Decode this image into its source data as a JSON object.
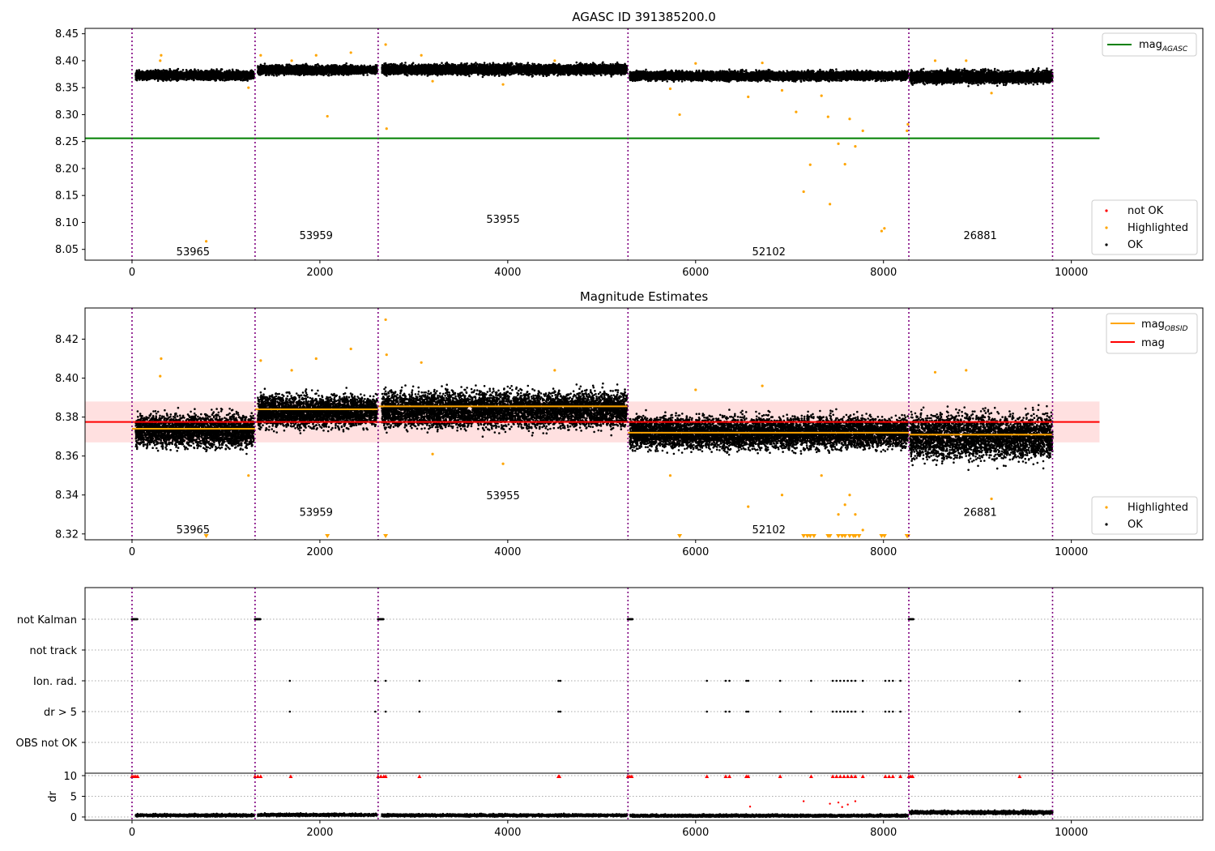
{
  "chart_data": [
    {
      "type": "scatter",
      "title": "AGASC ID 391385200.0",
      "xlim": [
        -500,
        11400
      ],
      "ylim": [
        8.03,
        8.46
      ],
      "x_ticks": [
        0,
        2000,
        4000,
        6000,
        8000,
        10000
      ],
      "y_ticks": [
        8.05,
        8.1,
        8.15,
        8.2,
        8.25,
        8.3,
        8.35,
        8.4,
        8.45
      ],
      "obsid_boundaries": [
        0,
        1310,
        2620,
        5280,
        8270,
        9800
      ],
      "obsid_labels": [
        {
          "label": "53965",
          "x": 650,
          "y": 8.045
        },
        {
          "label": "53959",
          "x": 1960,
          "y": 8.075
        },
        {
          "label": "53955",
          "x": 3950,
          "y": 8.105
        },
        {
          "label": "52102",
          "x": 6780,
          "y": 8.045
        },
        {
          "label": "26881",
          "x": 9030,
          "y": 8.075
        }
      ],
      "mag_agasc": 8.256,
      "mag_agasc_xrange": [
        -500,
        10300
      ],
      "ok_segments": [
        {
          "x": [
            40,
            1300
          ],
          "center": 8.373,
          "spread": 0.008
        },
        {
          "x": [
            1340,
            2610
          ],
          "center": 8.383,
          "spread": 0.008
        },
        {
          "x": [
            2660,
            5270
          ],
          "center": 8.384,
          "spread": 0.009
        },
        {
          "x": [
            5300,
            8260
          ],
          "center": 8.372,
          "spread": 0.008
        },
        {
          "x": [
            8280,
            9800
          ],
          "center": 8.37,
          "spread": 0.011
        }
      ],
      "highlighted_points": [
        [
          310,
          8.41
        ],
        [
          300,
          8.4
        ],
        [
          790,
          8.065
        ],
        [
          1240,
          8.35
        ],
        [
          1370,
          8.41
        ],
        [
          1700,
          8.4
        ],
        [
          1960,
          8.41
        ],
        [
          2080,
          8.297
        ],
        [
          2330,
          8.415
        ],
        [
          2700,
          8.43
        ],
        [
          2710,
          8.274
        ],
        [
          3080,
          8.41
        ],
        [
          3200,
          8.362
        ],
        [
          3950,
          8.356
        ],
        [
          4500,
          8.4
        ],
        [
          5730,
          8.348
        ],
        [
          5830,
          8.3
        ],
        [
          6000,
          8.395
        ],
        [
          6560,
          8.333
        ],
        [
          6710,
          8.396
        ],
        [
          6920,
          8.345
        ],
        [
          7070,
          8.305
        ],
        [
          7150,
          8.157
        ],
        [
          7220,
          8.207
        ],
        [
          7340,
          8.335
        ],
        [
          7410,
          8.296
        ],
        [
          7430,
          8.134
        ],
        [
          7520,
          8.246
        ],
        [
          7590,
          8.208
        ],
        [
          7640,
          8.292
        ],
        [
          7700,
          8.241
        ],
        [
          7780,
          8.27
        ],
        [
          7980,
          8.084
        ],
        [
          8010,
          8.089
        ],
        [
          8250,
          8.27
        ],
        [
          8260,
          8.282
        ],
        [
          8550,
          8.4
        ],
        [
          8880,
          8.4
        ],
        [
          9150,
          8.34
        ]
      ],
      "series": [
        {
          "name": "not OK",
          "color": "#ff0000"
        },
        {
          "name": "Highlighted",
          "color": "#ffa500"
        },
        {
          "name": "OK",
          "color": "#000000"
        }
      ],
      "line_legend": {
        "name": "mag",
        "subscript": "AGASC",
        "color": "#008000"
      },
      "legend_placement": [
        "top-right",
        "bottom-right"
      ]
    },
    {
      "type": "scatter",
      "title": "Magnitude Estimates",
      "xlim": [
        -500,
        11400
      ],
      "ylim": [
        8.317,
        8.436
      ],
      "x_ticks": [
        0,
        2000,
        4000,
        6000,
        8000,
        10000
      ],
      "y_ticks": [
        8.32,
        8.34,
        8.36,
        8.38,
        8.4,
        8.42
      ],
      "obsid_boundaries": [
        0,
        1310,
        2620,
        5280,
        8270,
        9800
      ],
      "obsid_labels": [
        {
          "label": "53965",
          "x": 650,
          "y": 8.322
        },
        {
          "label": "53959",
          "x": 1960,
          "y": 8.331
        },
        {
          "label": "53955",
          "x": 3950,
          "y": 8.3395
        },
        {
          "label": "52102",
          "x": 6780,
          "y": 8.322
        },
        {
          "label": "26881",
          "x": 9030,
          "y": 8.331
        }
      ],
      "mag": 8.3775,
      "mag_band": [
        8.367,
        8.388
      ],
      "mag_xrange": [
        -500,
        10300
      ],
      "mag_obsid": [
        {
          "x": [
            0,
            1310
          ],
          "mag": 8.374
        },
        {
          "x": [
            1310,
            2620
          ],
          "mag": 8.384
        },
        {
          "x": [
            2620,
            5280
          ],
          "mag": 8.3855
        },
        {
          "x": [
            5280,
            8270
          ],
          "mag": 8.372
        },
        {
          "x": [
            8270,
            9800
          ],
          "mag": 8.371
        }
      ],
      "ok_segments": [
        {
          "x": [
            40,
            1300
          ],
          "center": 8.373,
          "spread": 0.008
        },
        {
          "x": [
            1340,
            2610
          ],
          "center": 8.383,
          "spread": 0.008
        },
        {
          "x": [
            2660,
            5270
          ],
          "center": 8.384,
          "spread": 0.009
        },
        {
          "x": [
            5300,
            8260
          ],
          "center": 8.372,
          "spread": 0.008
        },
        {
          "x": [
            8280,
            9800
          ],
          "center": 8.37,
          "spread": 0.011
        }
      ],
      "highlighted_points": [
        [
          310,
          8.41
        ],
        [
          300,
          8.401
        ],
        [
          1240,
          8.35
        ],
        [
          1370,
          8.409
        ],
        [
          1700,
          8.404
        ],
        [
          1960,
          8.41
        ],
        [
          2330,
          8.415
        ],
        [
          2700,
          8.43
        ],
        [
          2710,
          8.412
        ],
        [
          3080,
          8.408
        ],
        [
          3200,
          8.361
        ],
        [
          3950,
          8.356
        ],
        [
          4500,
          8.404
        ],
        [
          5730,
          8.35
        ],
        [
          6000,
          8.394
        ],
        [
          6560,
          8.334
        ],
        [
          6710,
          8.396
        ],
        [
          6920,
          8.34
        ],
        [
          7340,
          8.35
        ],
        [
          7520,
          8.33
        ],
        [
          7590,
          8.335
        ],
        [
          7640,
          8.34
        ],
        [
          7700,
          8.33
        ],
        [
          7780,
          8.322
        ],
        [
          8550,
          8.403
        ],
        [
          8880,
          8.404
        ],
        [
          9150,
          8.338
        ]
      ],
      "clipped_markers_x": [
        790,
        2080,
        2700,
        5830,
        7150,
        7190,
        7220,
        7260,
        7410,
        7430,
        7520,
        7560,
        7590,
        7640,
        7680,
        7700,
        7740,
        7980,
        8010,
        8250,
        8260
      ],
      "series": [
        {
          "name": "Highlighted",
          "color": "#ffa500"
        },
        {
          "name": "OK",
          "color": "#000000"
        }
      ],
      "line_legend": [
        {
          "name": "mag",
          "subscript": "OBSID",
          "color": "#ffa500"
        },
        {
          "name": "mag",
          "subscript": "",
          "color": "#ff0000"
        }
      ],
      "legend_placement": [
        "top-right",
        "bottom-right"
      ]
    },
    {
      "type": "scatter",
      "xlim": [
        -500,
        11400
      ],
      "x_ticks": [
        0,
        2000,
        4000,
        6000,
        8000,
        10000
      ],
      "flag_rows": [
        "not Kalman",
        "not track",
        "Ion. rad.",
        "dr > 5",
        "OBS not OK"
      ],
      "obsid_boundaries": [
        0,
        1310,
        2620,
        5280,
        8270,
        9800
      ],
      "not_kalman_x_ranges": [
        [
          0,
          60
        ],
        [
          1310,
          1370
        ],
        [
          2620,
          2680
        ],
        [
          5280,
          5330
        ],
        [
          8270,
          8320
        ]
      ],
      "ion_rad_x": [
        1680,
        2590,
        2700,
        3060,
        4540,
        4560,
        6120,
        6320,
        6360,
        6540,
        6560,
        6900,
        7230,
        7460,
        7500,
        7540,
        7580,
        7620,
        7660,
        7700,
        7780,
        8020,
        8060,
        8100,
        8180,
        9450
      ],
      "dr5_x": [
        1680,
        2590,
        2700,
        3060,
        4540,
        4560,
        6120,
        6320,
        6360,
        6540,
        6560,
        6900,
        7230,
        7460,
        7500,
        7540,
        7580,
        7620,
        7660,
        7700,
        7780,
        8020,
        8060,
        8100,
        8180,
        9450
      ]
    },
    {
      "type": "scatter",
      "ylabel": "dr",
      "xlim": [
        -500,
        11400
      ],
      "ylim": [
        0,
        10
      ],
      "y_ticks": [
        0,
        5,
        10
      ],
      "x_ticks": [
        0,
        2000,
        4000,
        6000,
        8000,
        10000
      ],
      "obsid_boundaries": [
        0,
        1310,
        2620,
        5280,
        8270,
        9800
      ],
      "ok_segments": [
        {
          "x": [
            40,
            1300
          ],
          "center": 0.4,
          "spread": 0.3
        },
        {
          "x": [
            1340,
            2610
          ],
          "center": 0.5,
          "spread": 0.3
        },
        {
          "x": [
            2660,
            5270
          ],
          "center": 0.4,
          "spread": 0.3
        },
        {
          "x": [
            5300,
            8260
          ],
          "center": 0.3,
          "spread": 0.3
        },
        {
          "x": [
            8280,
            9800
          ],
          "center": 1.1,
          "spread": 0.4
        }
      ],
      "scattered_points": [
        [
          6580,
          2.5
        ],
        [
          7150,
          3.8
        ],
        [
          7430,
          3.2
        ],
        [
          7520,
          3.5
        ],
        [
          7620,
          3.0
        ],
        [
          7700,
          3.8
        ],
        [
          7560,
          2.4
        ]
      ],
      "clipped_markers_x": [
        0,
        20,
        40,
        60,
        1310,
        1340,
        1370,
        1690,
        2620,
        2650,
        2680,
        2700,
        3060,
        4540,
        4550,
        5280,
        5300,
        5320,
        6120,
        6320,
        6360,
        6540,
        6560,
        6900,
        7230,
        7460,
        7500,
        7540,
        7580,
        7620,
        7660,
        7700,
        7780,
        8020,
        8060,
        8100,
        8180,
        8270,
        8290,
        8310,
        9450
      ]
    }
  ]
}
